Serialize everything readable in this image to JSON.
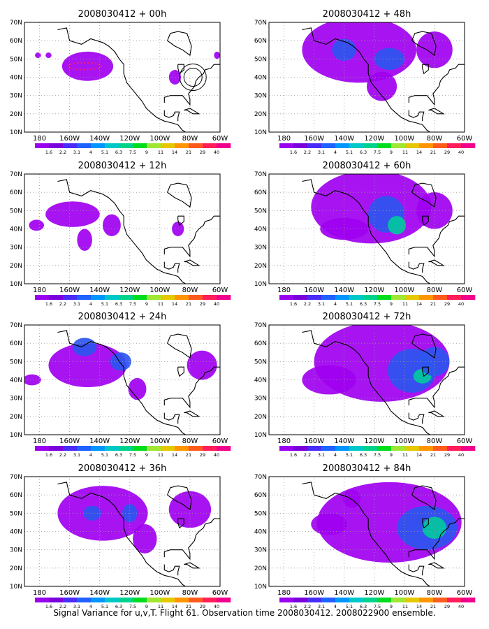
{
  "figure": {
    "caption": "Signal Variance for u,v,T. Flight 61. Observation time 2008030412. 2008022900 ensemble."
  },
  "axes": {
    "lon_ticks": [
      "180",
      "160W",
      "140W",
      "120W",
      "100W",
      "80W",
      "60W"
    ],
    "lat_ticks": [
      "70N",
      "60N",
      "50N",
      "40N",
      "30N",
      "20N",
      "10N"
    ],
    "lon_range": [
      -190,
      -60
    ],
    "lat_range": [
      10,
      70
    ]
  },
  "colorbar": {
    "labels": [
      "1.6",
      "2.2",
      "3.1",
      "4",
      "5.1",
      "6.3",
      "7.5",
      "9",
      "11",
      "14",
      "21",
      "29",
      "40"
    ],
    "colors": [
      "#9a00f0",
      "#7a00dc",
      "#4a2cf8",
      "#1e62ff",
      "#0096ff",
      "#00c8c8",
      "#00d28c",
      "#00dc1e",
      "#a0e632",
      "#e6c800",
      "#ff9600",
      "#ff5a1e",
      "#ff1e5a",
      "#f0008c"
    ]
  },
  "panels": [
    {
      "title": "2008030412 + 00h",
      "lead_hours": 0,
      "column": "left"
    },
    {
      "title": "2008030412 + 12h",
      "lead_hours": 12,
      "column": "left"
    },
    {
      "title": "2008030412 + 24h",
      "lead_hours": 24,
      "column": "left"
    },
    {
      "title": "2008030412 + 36h",
      "lead_hours": 36,
      "column": "left"
    },
    {
      "title": "2008030412 + 48h",
      "lead_hours": 48,
      "column": "right"
    },
    {
      "title": "2008030412 + 60h",
      "lead_hours": 60,
      "column": "right"
    },
    {
      "title": "2008030412 + 72h",
      "lead_hours": 72,
      "column": "right"
    },
    {
      "title": "2008030412 + 84h",
      "lead_hours": 84,
      "column": "right"
    }
  ],
  "map_colors": {
    "background": "#ffffff",
    "coastline": "#000000",
    "grid": "#999999",
    "low_variance": "#a000f0",
    "mid_variance": "#2c56f0",
    "high_variance": "#00c8a0"
  }
}
